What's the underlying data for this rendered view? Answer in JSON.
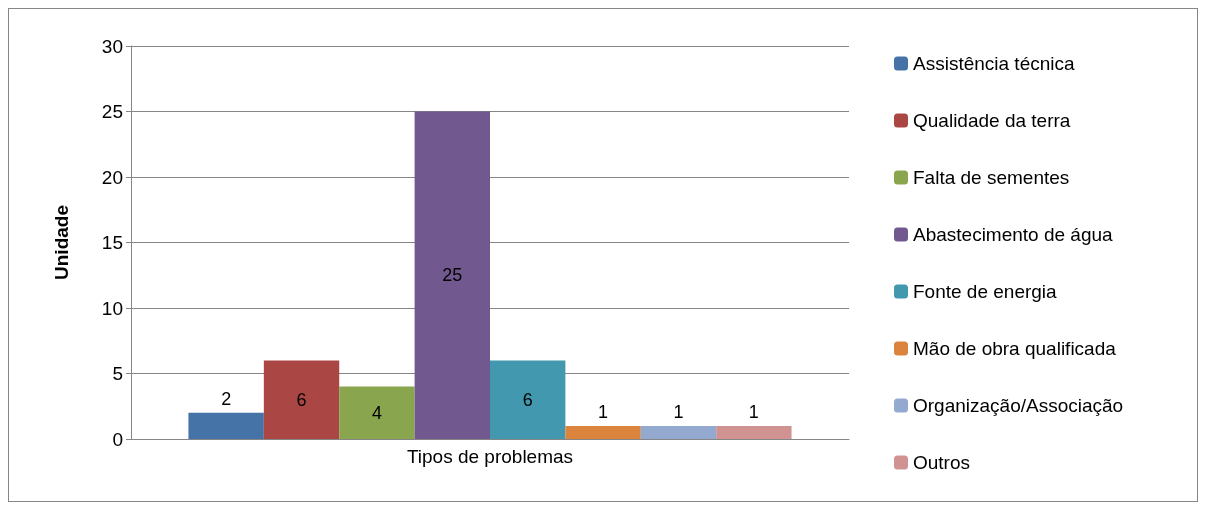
{
  "chart_data": {
    "type": "bar",
    "ylabel": "Unidade",
    "categories": [
      "Tipos de problemas"
    ],
    "series": [
      {
        "name": "Assistência técnica",
        "color": "#4572a7",
        "values": [
          2
        ]
      },
      {
        "name": "Qualidade da terra",
        "color": "#aa4643",
        "values": [
          6
        ]
      },
      {
        "name": "Falta de sementes",
        "color": "#89a54e",
        "values": [
          4
        ]
      },
      {
        "name": "Abastecimento de água",
        "color": "#71588f",
        "values": [
          25
        ]
      },
      {
        "name": "Fonte de energia",
        "color": "#4198af",
        "values": [
          6
        ]
      },
      {
        "name": "Mão de obra qualificada",
        "color": "#db843d",
        "values": [
          1
        ]
      },
      {
        "name": "Organização/Associação",
        "color": "#93a9cf",
        "values": [
          1
        ]
      },
      {
        "name": "Outros",
        "color": "#d19392",
        "values": [
          1
        ]
      }
    ],
    "ylim": [
      0,
      30
    ],
    "yticks": [
      0,
      5,
      10,
      15,
      20,
      25,
      30
    ],
    "grid": "y",
    "legend": "right",
    "data_labels": true
  }
}
